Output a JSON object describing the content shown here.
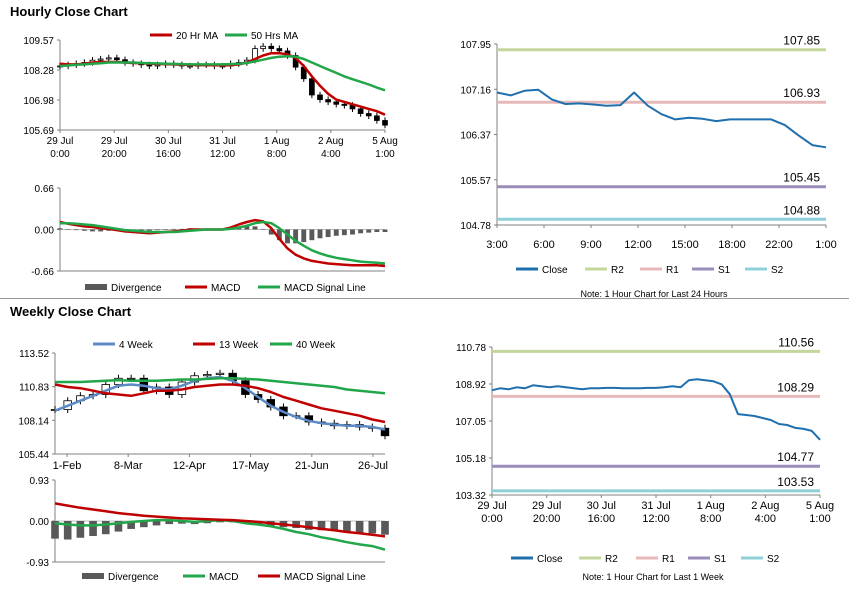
{
  "sections": {
    "hourly_title": "Hourly Close Chart",
    "weekly_title": "Weekly Close Chart"
  },
  "colors": {
    "close": "#1f6fae",
    "ma_red": "#c00000",
    "ma_green": "#21a64a",
    "ma_blue": "#5b8ac6",
    "r2": "#c3d69b",
    "r1": "#e6b9b8",
    "s1": "#9c8cb9",
    "s2": "#8fd0d8",
    "divergence": "#595959",
    "axis": "#808080"
  },
  "chart_data": [
    {
      "id": "hourly_price",
      "type": "candlestick",
      "legend": [
        "20 Hr MA",
        "50 Hrs MA"
      ],
      "yticks": [
        "109.57",
        "108.28",
        "106.98",
        "105.69"
      ],
      "ylim": [
        105.69,
        109.57
      ],
      "xticks": [
        [
          "29 Jul",
          "0:00"
        ],
        [
          "29 Jul",
          "20:00"
        ],
        [
          "30 Jul",
          "16:00"
        ],
        [
          "31 Jul",
          "12:00"
        ],
        [
          "1 Aug",
          "8:00"
        ],
        [
          "2 Aug",
          "4:00"
        ],
        [
          "5 Aug",
          "1:00"
        ]
      ],
      "series": [
        {
          "name": "Close",
          "values": [
            108.45,
            108.5,
            108.55,
            108.6,
            108.7,
            108.75,
            108.8,
            108.72,
            108.6,
            108.55,
            108.5,
            108.45,
            108.5,
            108.55,
            108.5,
            108.45,
            108.45,
            108.5,
            108.5,
            108.45,
            108.45,
            108.55,
            108.6,
            108.7,
            109.2,
            109.3,
            109.2,
            109.1,
            108.9,
            108.4,
            107.9,
            107.2,
            107.0,
            106.9,
            106.8,
            106.75,
            106.6,
            106.4,
            106.3,
            106.1,
            105.9
          ]
        },
        {
          "name": "20 Hr MA",
          "values": [
            108.55,
            108.52,
            108.52,
            108.55,
            108.6,
            108.62,
            108.62,
            108.62,
            108.6,
            108.58,
            108.57,
            108.55,
            108.54,
            108.53,
            108.52,
            108.5,
            108.5,
            108.49,
            108.49,
            108.48,
            108.48,
            108.48,
            108.52,
            108.6,
            108.75,
            108.9,
            109.0,
            109.0,
            108.95,
            108.8,
            108.45,
            108.0,
            107.6,
            107.25,
            107.0,
            106.9,
            106.8,
            106.7,
            106.6,
            106.5,
            106.35
          ]
        },
        {
          "name": "50 Hrs MA",
          "values": [
            108.45,
            108.47,
            108.5,
            108.52,
            108.55,
            108.57,
            108.6,
            108.6,
            108.6,
            108.6,
            108.58,
            108.57,
            108.56,
            108.55,
            108.54,
            108.53,
            108.52,
            108.52,
            108.52,
            108.52,
            108.52,
            108.53,
            108.55,
            108.58,
            108.65,
            108.72,
            108.8,
            108.85,
            108.87,
            108.85,
            108.75,
            108.6,
            108.45,
            108.3,
            108.15,
            108.0,
            107.88,
            107.77,
            107.65,
            107.52,
            107.4
          ]
        }
      ]
    },
    {
      "id": "hourly_macd",
      "type": "bar+line",
      "legend": [
        "Divergence",
        "MACD",
        "MACD Signal Line"
      ],
      "yticks": [
        "0.66",
        "0.00",
        "-0.66"
      ],
      "ylim": [
        -0.66,
        0.66
      ],
      "series": [
        {
          "name": "MACD",
          "values": [
            0.12,
            0.09,
            0.07,
            0.05,
            0.04,
            0.02,
            0.01,
            -0.01,
            -0.03,
            -0.04,
            -0.05,
            -0.06,
            -0.05,
            -0.04,
            -0.03,
            -0.02,
            0.0,
            0.0,
            0.0,
            0.0,
            0.0,
            0.03,
            0.08,
            0.12,
            0.15,
            0.13,
            0.02,
            -0.15,
            -0.3,
            -0.4,
            -0.46,
            -0.5,
            -0.52,
            -0.54,
            -0.55,
            -0.56,
            -0.57,
            -0.57,
            -0.57,
            -0.57,
            -0.58
          ]
        },
        {
          "name": "MACD Signal Line",
          "values": [
            0.1,
            0.1,
            0.09,
            0.08,
            0.07,
            0.05,
            0.03,
            0.01,
            -0.01,
            -0.02,
            -0.03,
            -0.04,
            -0.04,
            -0.04,
            -0.04,
            -0.03,
            -0.02,
            -0.01,
            0.0,
            0.0,
            0.0,
            0.01,
            0.03,
            0.06,
            0.1,
            0.12,
            0.1,
            0.02,
            -0.08,
            -0.18,
            -0.26,
            -0.33,
            -0.38,
            -0.42,
            -0.45,
            -0.47,
            -0.49,
            -0.51,
            -0.52,
            -0.53,
            -0.54
          ]
        },
        {
          "name": "Divergence",
          "values": [
            0.02,
            0.0,
            -0.01,
            -0.02,
            -0.03,
            -0.03,
            -0.02,
            -0.02,
            -0.02,
            -0.02,
            -0.02,
            -0.02,
            -0.01,
            0.0,
            0.01,
            0.01,
            0.02,
            0.01,
            0.0,
            0.0,
            0.0,
            0.02,
            0.05,
            0.06,
            0.05,
            0.01,
            -0.08,
            -0.17,
            -0.22,
            -0.22,
            -0.2,
            -0.17,
            -0.14,
            -0.12,
            -0.1,
            -0.09,
            -0.08,
            -0.06,
            -0.05,
            -0.04,
            -0.04
          ]
        }
      ]
    },
    {
      "id": "hourly_pivot",
      "type": "line",
      "note": "Note: 1 Hour Chart for Last 24 Hours",
      "legend": [
        "Close",
        "R2",
        "R1",
        "S1",
        "S2"
      ],
      "yticks": [
        "107.95",
        "107.16",
        "106.37",
        "105.57",
        "104.78"
      ],
      "ylim": [
        104.78,
        107.95
      ],
      "xticks": [
        "3:00",
        "6:00",
        "9:00",
        "12:00",
        "15:00",
        "18:00",
        "22:00",
        "1:00"
      ],
      "levels": {
        "R2": 107.85,
        "R1": 106.93,
        "S1": 105.45,
        "S2": 104.88
      },
      "level_labels": {
        "R2": "107.85",
        "R1": "106.93",
        "S1": "105.45",
        "S2": "104.88"
      },
      "series": [
        {
          "name": "Close",
          "values": [
            107.1,
            107.05,
            107.13,
            107.15,
            106.98,
            106.9,
            106.91,
            106.89,
            106.87,
            106.88,
            107.1,
            106.87,
            106.72,
            106.63,
            106.66,
            106.64,
            106.6,
            106.63,
            106.63,
            106.63,
            106.63,
            106.53,
            106.35,
            106.18,
            106.14
          ]
        }
      ]
    },
    {
      "id": "weekly_price",
      "type": "candlestick",
      "legend": [
        "4 Week",
        "13 Week",
        "40 Week"
      ],
      "yticks": [
        "113.52",
        "110.83",
        "108.14",
        "105.44"
      ],
      "ylim": [
        105.44,
        113.52
      ],
      "xticks": [
        "1-Feb",
        "8-Mar",
        "12-Apr",
        "17-May",
        "21-Jun",
        "26-Jul"
      ],
      "series": [
        {
          "name": "Close",
          "values": [
            109.0,
            109.7,
            110.1,
            110.2,
            111.0,
            111.5,
            111.5,
            110.5,
            110.8,
            110.2,
            111.2,
            111.7,
            111.8,
            111.9,
            111.3,
            110.2,
            109.8,
            109.2,
            108.5,
            108.5,
            108.0,
            107.9,
            107.7,
            107.8,
            107.6,
            107.5,
            106.9
          ]
        },
        {
          "name": "4 Week",
          "values": [
            108.9,
            109.3,
            109.7,
            110.1,
            110.5,
            110.9,
            111.0,
            110.9,
            110.7,
            110.6,
            110.9,
            111.3,
            111.5,
            111.6,
            111.3,
            110.7,
            110.0,
            109.3,
            108.8,
            108.4,
            108.1,
            107.9,
            107.8,
            107.7,
            107.7,
            107.6,
            107.4
          ]
        },
        {
          "name": "13 Week",
          "values": [
            111.0,
            110.8,
            110.7,
            110.5,
            110.3,
            110.2,
            110.1,
            110.3,
            110.5,
            110.5,
            110.6,
            110.8,
            110.9,
            111.0,
            111.0,
            110.9,
            110.7,
            110.4,
            110.0,
            109.7,
            109.4,
            109.1,
            108.9,
            108.7,
            108.5,
            108.2,
            108.0
          ]
        },
        {
          "name": "40 Week",
          "values": [
            111.2,
            111.2,
            111.2,
            111.25,
            111.3,
            111.35,
            111.3,
            111.3,
            111.3,
            111.35,
            111.4,
            111.4,
            111.45,
            111.5,
            111.5,
            111.45,
            111.4,
            111.3,
            111.2,
            111.1,
            111.0,
            110.9,
            110.8,
            110.6,
            110.5,
            110.4,
            110.3
          ]
        }
      ]
    },
    {
      "id": "weekly_macd",
      "type": "bar+line",
      "legend": [
        "Divergence",
        "MACD",
        "MACD Signal Line"
      ],
      "yticks": [
        "0.93",
        "0.00",
        "-0.93"
      ],
      "ylim": [
        -0.93,
        0.93
      ],
      "series": [
        {
          "name": "MACD",
          "values": [
            -0.05,
            -0.08,
            -0.1,
            -0.1,
            -0.08,
            -0.05,
            -0.02,
            0.0,
            0.02,
            0.02,
            0.0,
            -0.02,
            0.0,
            0.02,
            0.0,
            -0.05,
            -0.08,
            -0.12,
            -0.18,
            -0.25,
            -0.3,
            -0.37,
            -0.42,
            -0.48,
            -0.53,
            -0.57,
            -0.65
          ]
        },
        {
          "name": "MACD Signal Line",
          "values": [
            0.4,
            0.35,
            0.3,
            0.26,
            0.22,
            0.18,
            0.15,
            0.12,
            0.1,
            0.08,
            0.06,
            0.05,
            0.04,
            0.03,
            0.02,
            0.0,
            -0.02,
            -0.05,
            -0.08,
            -0.11,
            -0.14,
            -0.18,
            -0.21,
            -0.25,
            -0.28,
            -0.31,
            -0.35
          ]
        },
        {
          "name": "Divergence",
          "values": [
            -0.4,
            -0.42,
            -0.38,
            -0.34,
            -0.3,
            -0.24,
            -0.18,
            -0.14,
            -0.1,
            -0.07,
            -0.06,
            -0.07,
            -0.05,
            -0.03,
            -0.03,
            -0.06,
            -0.09,
            -0.12,
            -0.14,
            -0.16,
            -0.2,
            -0.21,
            -0.22,
            -0.23,
            -0.26,
            -0.28,
            -0.31
          ]
        }
      ]
    },
    {
      "id": "weekly_pivot",
      "type": "line",
      "note": "Note: 1 Hour Chart for Last 1 Week",
      "legend": [
        "Close",
        "R2",
        "R1",
        "S1",
        "S2"
      ],
      "yticks": [
        "110.78",
        "108.92",
        "107.05",
        "105.18",
        "103.32"
      ],
      "ylim": [
        103.32,
        110.78
      ],
      "xticks": [
        [
          "29 Jul",
          "0:00"
        ],
        [
          "29 Jul",
          "20:00"
        ],
        [
          "30 Jul",
          "16:00"
        ],
        [
          "31 Jul",
          "12:00"
        ],
        [
          "1 Aug",
          "8:00"
        ],
        [
          "2 Aug",
          "4:00"
        ],
        [
          "5 Aug",
          "1:00"
        ]
      ],
      "levels": {
        "R2": 110.56,
        "R1": 108.29,
        "S1": 104.77,
        "S2": 103.53
      },
      "level_labels": {
        "R2": "110.56",
        "R1": "108.29",
        "S1": "104.77",
        "S2": "103.53"
      },
      "series": [
        {
          "name": "Close",
          "values": [
            108.6,
            108.7,
            108.65,
            108.75,
            108.7,
            108.85,
            108.8,
            108.75,
            108.8,
            108.75,
            108.7,
            108.65,
            108.7,
            108.7,
            108.72,
            108.72,
            108.7,
            108.7,
            108.7,
            108.72,
            108.72,
            108.75,
            108.8,
            108.75,
            109.1,
            109.15,
            109.1,
            109.05,
            108.9,
            108.4,
            107.4,
            107.35,
            107.3,
            107.2,
            107.1,
            106.9,
            106.85,
            106.7,
            106.65,
            106.55,
            106.1
          ]
        }
      ]
    }
  ]
}
